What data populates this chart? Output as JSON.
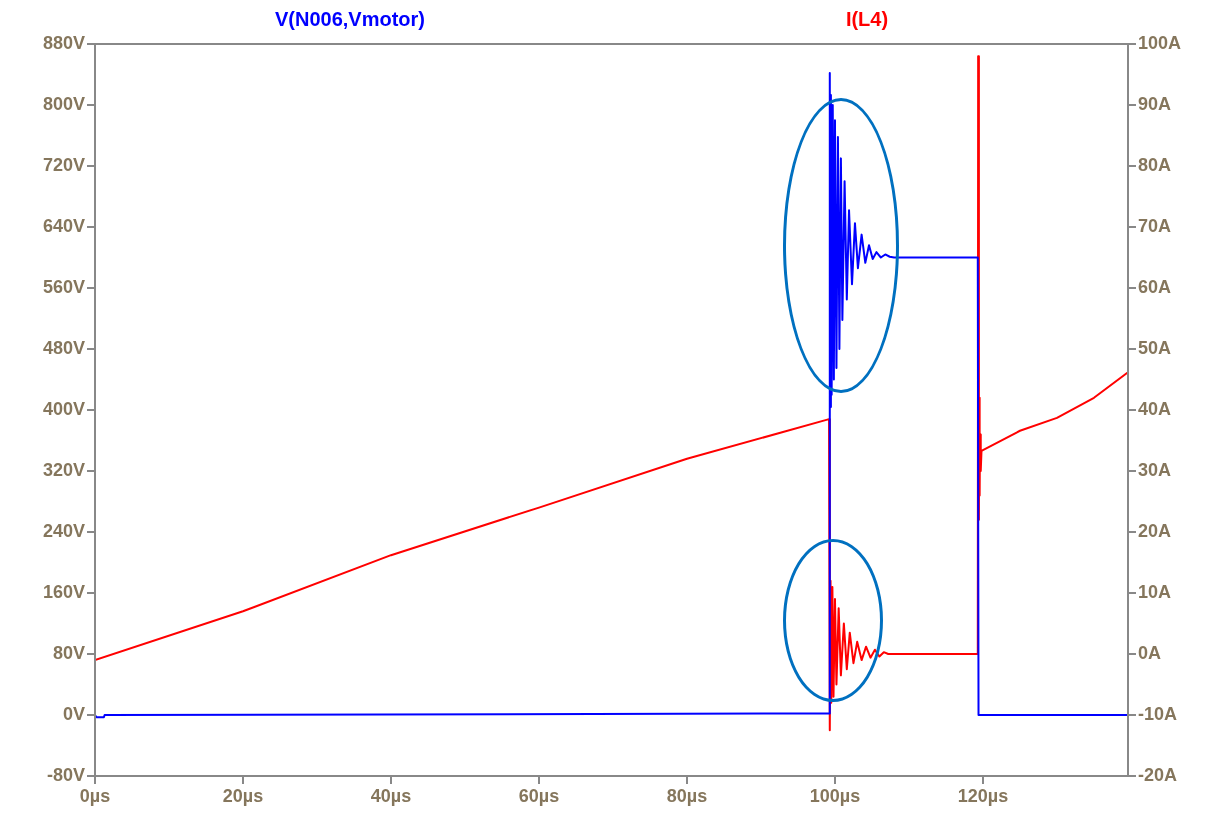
{
  "chart_data": {
    "type": "line",
    "legend": "top",
    "marker": "none",
    "line_style": "solid",
    "grid": false,
    "xlim": [
      0,
      139.6
    ],
    "xticks": [
      {
        "value": 0,
        "label": "0µs"
      },
      {
        "value": 20,
        "label": "20µs"
      },
      {
        "value": 40,
        "label": "40µs"
      },
      {
        "value": 60,
        "label": "60µs"
      },
      {
        "value": 80,
        "label": "80µs"
      },
      {
        "value": 100,
        "label": "100µs"
      },
      {
        "value": 120,
        "label": "120µs"
      }
    ],
    "ylim": [
      -80,
      880
    ],
    "yticks": [
      {
        "value": -80,
        "label": "-80V"
      },
      {
        "value": 0,
        "label": "0V"
      },
      {
        "value": 80,
        "label": "80V"
      },
      {
        "value": 160,
        "label": "160V"
      },
      {
        "value": 240,
        "label": "240V"
      },
      {
        "value": 320,
        "label": "320V"
      },
      {
        "value": 400,
        "label": "400V"
      },
      {
        "value": 480,
        "label": "480V"
      },
      {
        "value": 560,
        "label": "560V"
      },
      {
        "value": 640,
        "label": "640V"
      },
      {
        "value": 720,
        "label": "720V"
      },
      {
        "value": 800,
        "label": "800V"
      },
      {
        "value": 880,
        "label": "880V"
      }
    ],
    "y2lim": [
      -20,
      100
    ],
    "y2ticks": [
      {
        "value": -20,
        "label": "-20A"
      },
      {
        "value": -10,
        "label": "-10A"
      },
      {
        "value": 0,
        "label": "0A"
      },
      {
        "value": 10,
        "label": "10A"
      },
      {
        "value": 20,
        "label": "20A"
      },
      {
        "value": 30,
        "label": "30A"
      },
      {
        "value": 40,
        "label": "40A"
      },
      {
        "value": 50,
        "label": "50A"
      },
      {
        "value": 60,
        "label": "60A"
      },
      {
        "value": 70,
        "label": "70A"
      },
      {
        "value": 80,
        "label": "80A"
      },
      {
        "value": 90,
        "label": "90A"
      },
      {
        "value": 100,
        "label": "100A"
      }
    ],
    "series": [
      {
        "name": "V(N006,Vmotor)",
        "color": "#0000ff",
        "x": [
          0,
          0.2,
          1.2,
          1.3,
          99.2,
          99.3,
          99.35,
          99.45,
          99.55,
          99.7,
          99.85,
          100,
          100.2,
          100.4,
          100.6,
          100.8,
          101,
          101.3,
          101.6,
          101.9,
          102.3,
          102.7,
          103.1,
          103.6,
          104.1,
          104.6,
          105.1,
          105.6,
          106.2,
          106.8,
          107.4,
          108,
          119.3,
          119.4,
          139.6
        ],
        "values": [
          0,
          -3,
          -3,
          0,
          2,
          842,
          404,
          813,
          420,
          800,
          440,
          780,
          455,
          758,
          480,
          730,
          518,
          700,
          545,
          662,
          565,
          645,
          586,
          630,
          593,
          616,
          598,
          607,
          600,
          604,
          601,
          600,
          600,
          0,
          0
        ]
      },
      {
        "name": "I(L4)",
        "color": "#ff0000",
        "axis": "y2",
        "x": [
          0,
          20,
          40,
          60,
          80,
          99.2,
          99.3,
          99.4,
          99.5,
          99.65,
          99.8,
          100,
          100.2,
          100.5,
          100.8,
          101.2,
          101.6,
          102,
          102.5,
          103,
          103.6,
          104.2,
          104.8,
          105.4,
          106,
          106.6,
          107.2,
          119.3,
          119.35,
          119.45,
          119.5,
          119.55,
          119.6,
          119.7,
          119.8,
          125,
          130,
          135,
          139.6
        ],
        "values": [
          -1,
          7,
          16.2,
          24,
          32,
          38.5,
          -12.5,
          12,
          -8,
          11,
          -7,
          9,
          -5,
          7.5,
          -3.5,
          5,
          -2.5,
          3.5,
          -1.5,
          2,
          -1,
          1.2,
          -0.6,
          0.7,
          -0.4,
          0.3,
          0,
          0,
          98,
          22,
          42,
          26,
          36,
          30,
          33.3,
          36.6,
          38.7,
          42,
          46.2
        ]
      }
    ]
  }
}
